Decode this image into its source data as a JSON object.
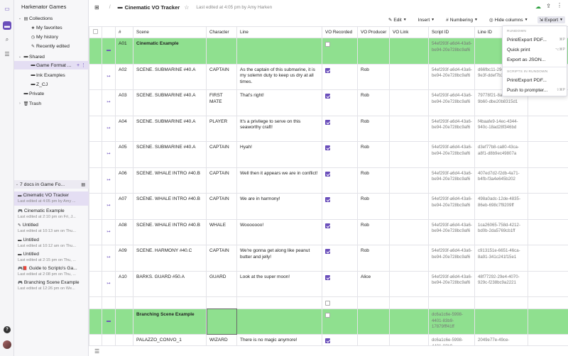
{
  "workspace": {
    "name": "Harkenator Games"
  },
  "tree": [
    {
      "label": "Collections",
      "chev": "⌄",
      "icon": "▤",
      "indent": 0
    },
    {
      "label": "My favorites",
      "chev": "",
      "icon": "★",
      "indent": 1
    },
    {
      "label": "My history",
      "chev": "",
      "icon": "◷",
      "indent": 1
    },
    {
      "label": "Recently edited",
      "chev": "",
      "icon": "✎",
      "indent": 1
    },
    {
      "label": "Shared",
      "chev": "⌄",
      "icon": "▬",
      "indent": 0
    },
    {
      "label": "Game Format ...",
      "chev": "",
      "icon": "▬",
      "indent": 1,
      "selected": true
    },
    {
      "label": "Ink Examples",
      "chev": "",
      "icon": "▬",
      "indent": 1
    },
    {
      "label": "Z_CJ",
      "chev": "",
      "icon": "▬",
      "indent": 1
    },
    {
      "label": "Private",
      "chev": "",
      "icon": "▬",
      "indent": 0
    },
    {
      "label": "Trash",
      "chev": "›",
      "icon": "🗑",
      "indent": 0
    }
  ],
  "docs_header": {
    "label": "7 docs in Game Fo..."
  },
  "docs": [
    {
      "title": "Cinematic VO Tracker",
      "meta": "Last edited at 4:05 pm by Amy ...",
      "icon": "▬",
      "selected": true
    },
    {
      "title": "Cinematic Example",
      "meta": "Last edited at 2:10 pm on Fri, J...",
      "icon": "🎮"
    },
    {
      "title": "Untitled",
      "meta": "Last edited at 10:13 am on Thu...",
      "icon": "✎"
    },
    {
      "title": "Untitled",
      "meta": "Last edited at 10:12 am on Thu...",
      "icon": "▬"
    },
    {
      "title": "Untitled",
      "meta": "Last edited at 2:15 pm on Thu, ...",
      "icon": "▬"
    },
    {
      "title": "Guide to Scripto's Ga...",
      "meta": "Last edited at 2:08 pm on Thu, ...",
      "icon": "🎮📕"
    },
    {
      "title": "Branching Scene Example",
      "meta": "Last edited at 12:26 pm on We...",
      "icon": "🎮"
    }
  ],
  "topbar": {
    "doc_title": "Cinematic VO Tracker",
    "edited": "Last edited at 4:05 pm by Amy Harken"
  },
  "toolbar": {
    "edit": "Edit",
    "insert": "Insert",
    "numbering": "Numbering",
    "hide_columns": "Hide columns",
    "export": "Export"
  },
  "dropdown": {
    "section1": "RUNDOWN",
    "print_export_pdf": "Print/Export PDF...",
    "print_export_pdf_sc": "⌘P",
    "quick_print": "Quick print",
    "quick_print_sc": "⌥⌘P",
    "export_json": "Export as JSON...",
    "section2": "SCRIPTS IN RUNDOWN",
    "scripts_print_pdf": "Print/Export PDF...",
    "push_prompter": "Push to prompter...",
    "push_prompter_sc": "⇧⌘P"
  },
  "columns": [
    "#",
    "Scene",
    "Character",
    "Line",
    "VO Recorded",
    "VO Producer",
    "VO Link",
    "Script ID",
    "Line ID"
  ],
  "rows": [
    {
      "type": "green",
      "num": "A01",
      "scene": "Cinematic Example",
      "character": "",
      "line": "",
      "vo": false,
      "producer": "",
      "script_id": "54ef293f-a6d4-43a6-be94-20e728bc9af6",
      "line_id": ""
    },
    {
      "type": "line",
      "num": "A02",
      "scene": "SCENE. SUBMARINE #40.A",
      "character": "CAPTAIN",
      "line": "As the captain of this submarine, it is my solemn duty to keep us dry at all times.",
      "vo": true,
      "producer": "Rob",
      "script_id": "54ef293f-a6d4-43a6-be94-20e728bc9af6",
      "line_id": "d66fbc11-29e5-4874-9e3f-ddef7b3437e"
    },
    {
      "type": "line",
      "num": "A03",
      "scene": "SCENE. SUBMARINE #40.A",
      "character": "FIRST MATE",
      "line": "That's right!",
      "vo": true,
      "producer": "Rob",
      "script_id": "54ef293f-a6d4-43a6-be94-20e728bc9af6",
      "line_id": "79778f21-8a0e-411f-9b60-dbe20b8315d1"
    },
    {
      "type": "line",
      "num": "A04",
      "scene": "SCENE. SUBMARINE #40.A",
      "character": "PLAYER",
      "line": "It's a privilege to serve on this seaworthy craft!",
      "vo": true,
      "producer": "Rob",
      "script_id": "54ef293f-a6d4-43a6-be94-20e728bc9af6",
      "line_id": "f4baafe9-14ec-4344-940c-18ad28f346bd"
    },
    {
      "type": "line",
      "num": "A05",
      "scene": "SCENE. SUBMARINE #40.A",
      "character": "CAPTAIN",
      "line": "Hyah!",
      "vo": true,
      "producer": "Rob",
      "script_id": "54ef293f-a6d4-43a6-be94-20e728bc9af6",
      "line_id": "d3ef77b8-ca80-43ca-a8f1-d8b9ec49807a"
    },
    {
      "type": "line",
      "num": "A06",
      "scene": "SCENE. WHALE INTRO #40.B",
      "character": "CAPTAIN",
      "line": "Well then it appears we are in conflict!",
      "vo": true,
      "producer": "Rob",
      "script_id": "54ef293f-a6d4-43a6-be94-20e728bc9af6",
      "line_id": "407ed7d2-f2db-4a71-b4fb-f3a4e645b202"
    },
    {
      "type": "line",
      "num": "A07",
      "scene": "SCENE. WHALE INTRO #40.B",
      "character": "CAPTAIN",
      "line": "We are in harmony!",
      "vo": true,
      "producer": "Rob",
      "script_id": "54ef293f-a6d4-43a6-be94-20e728bc9af6",
      "line_id": "498a0adc-12de-4835-86eb-698c7f9209ff"
    },
    {
      "type": "line",
      "num": "A08",
      "scene": "SCENE. WHALE INTRO #40.B",
      "character": "WHALE",
      "line": "Wooooooo!",
      "vo": true,
      "producer": "Rob",
      "script_id": "54ef293f-a6d4-43a6-be94-20e728bc9af6",
      "line_id": "1ca26065-758d-4212-bd0b-2da5769cb1ff"
    },
    {
      "type": "line",
      "num": "A09",
      "scene": "SCENE. HARMONY #40.C",
      "character": "CAPTAIN",
      "line": "We're gonna get along like peanut butter and jelly!",
      "vo": true,
      "producer": "Rob",
      "script_id": "54ef293f-a6d4-43a6-be94-20e728bc9af6",
      "line_id": "c913151e-6651-46ca-8a91-341c241f15e1"
    },
    {
      "type": "line",
      "num": "A10",
      "scene": "BARKS. GUARD #50.A",
      "character": "GUARD",
      "line": "Look at the super moon!",
      "vo": true,
      "producer": "Alice",
      "script_id": "54ef293f-a6d4-43a6-be94-20e728bc9af6",
      "line_id": "48f77292-29e4-4070-929c-f238bc9a2221"
    },
    {
      "type": "empty",
      "num": "",
      "scene": "",
      "character": "",
      "line": "",
      "vo": false,
      "producer": "",
      "script_id": "",
      "line_id": ""
    },
    {
      "type": "green",
      "num": "",
      "scene": "Branching Scene Example",
      "character": "",
      "line": "",
      "vo": false,
      "producer": "",
      "script_id": "dc6a1c6e-5998-4401-83b9-17879fff41ff",
      "line_id": ""
    },
    {
      "type": "line",
      "num": "",
      "scene": "PALAZZO_CONVO_1",
      "character": "WIZARD",
      "line": "There is no magic anymore!",
      "vo": true,
      "producer": "",
      "script_id": "dc6a1c6e-5998-4401-83b9-",
      "line_id": "2049e77e-49ce-"
    }
  ],
  "colors": {
    "accent": "#6b4fbb",
    "green_row": "#8fe08f",
    "saved": "#2a9d3a"
  }
}
